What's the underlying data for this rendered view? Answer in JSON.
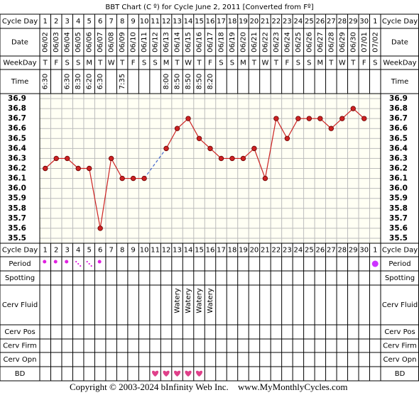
{
  "chart_data": {
    "type": "line",
    "title": "BBT Chart (C º) for Cycle June 2, 2011  [Converted from Fº]",
    "categories": [
      1,
      2,
      3,
      4,
      5,
      6,
      7,
      8,
      9,
      10,
      11,
      12,
      13,
      14,
      15,
      16,
      17,
      18,
      19,
      20,
      21,
      22,
      23,
      24,
      25,
      26,
      27,
      28,
      29,
      30,
      1
    ],
    "dates": [
      "06/02",
      "06/03",
      "06/04",
      "06/05",
      "06/06",
      "06/07",
      "06/08",
      "06/09",
      "06/10",
      "06/11",
      "06/12",
      "06/13",
      "06/14",
      "06/15",
      "06/16",
      "06/17",
      "06/18",
      "06/19",
      "06/20",
      "06/21",
      "06/22",
      "06/23",
      "06/24",
      "06/25",
      "06/26",
      "06/27",
      "06/28",
      "06/29",
      "06/30",
      "07/01",
      "07/02"
    ],
    "weekdays": [
      "T",
      "F",
      "S",
      "S",
      "M",
      "T",
      "W",
      "T",
      "F",
      "S",
      "S",
      "M",
      "T",
      "W",
      "T",
      "F",
      "S",
      "S",
      "M",
      "T",
      "W",
      "T",
      "F",
      "S",
      "S",
      "M",
      "T",
      "W",
      "T",
      "F",
      "S"
    ],
    "times": [
      "6:30",
      null,
      "6:30",
      "8:30",
      "6:20",
      "6:30",
      null,
      "7:35",
      null,
      null,
      null,
      "8:00",
      "8:50",
      "8:50",
      "8:50",
      "8:20",
      null,
      null,
      null,
      null,
      null,
      null,
      null,
      null,
      null,
      null,
      null,
      null,
      null,
      null,
      null
    ],
    "cerv_fluid": [
      null,
      null,
      null,
      null,
      null,
      null,
      null,
      null,
      null,
      null,
      null,
      null,
      "Watery",
      "Watery",
      "Watery",
      "Watery",
      null,
      null,
      null,
      null,
      null,
      null,
      null,
      null,
      null,
      null,
      null,
      null,
      null,
      null,
      null
    ],
    "values": [
      36.2,
      36.3,
      36.3,
      36.2,
      36.2,
      35.6,
      36.3,
      36.1,
      36.1,
      36.1,
      null,
      36.4,
      36.6,
      36.7,
      36.5,
      36.4,
      36.3,
      36.3,
      36.3,
      36.4,
      36.1,
      36.7,
      36.5,
      36.7,
      36.7,
      36.7,
      36.6,
      36.7,
      36.8,
      36.7,
      null
    ],
    "color": "#cc2222",
    "ylim": [
      35.45,
      36.95
    ],
    "yticks": [
      36.9,
      36.8,
      36.7,
      36.6,
      36.5,
      36.4,
      36.3,
      36.2,
      36.1,
      {
        "value": 36,
        "label": "36.0"
      },
      35.9,
      35.8,
      35.7,
      35.6,
      35.5
    ],
    "grid": true,
    "row_labels": {
      "cycle_day": "Cycle Day",
      "date": "Date",
      "weekday": "WeekDay",
      "time": "Time",
      "period": "Period",
      "spotting": "Spotting",
      "cerv_fluid": "Cerv Fluid",
      "cerv_pos": "Cerv Pos",
      "cerv_firm": "Cerv Firm",
      "cerv_opn": "Cerv Opn",
      "bd": "BD"
    },
    "copyright": "Copyright © 2003-2024 bInfinity Web Inc.",
    "website": "www.MyMonthlyCycles.com"
  }
}
